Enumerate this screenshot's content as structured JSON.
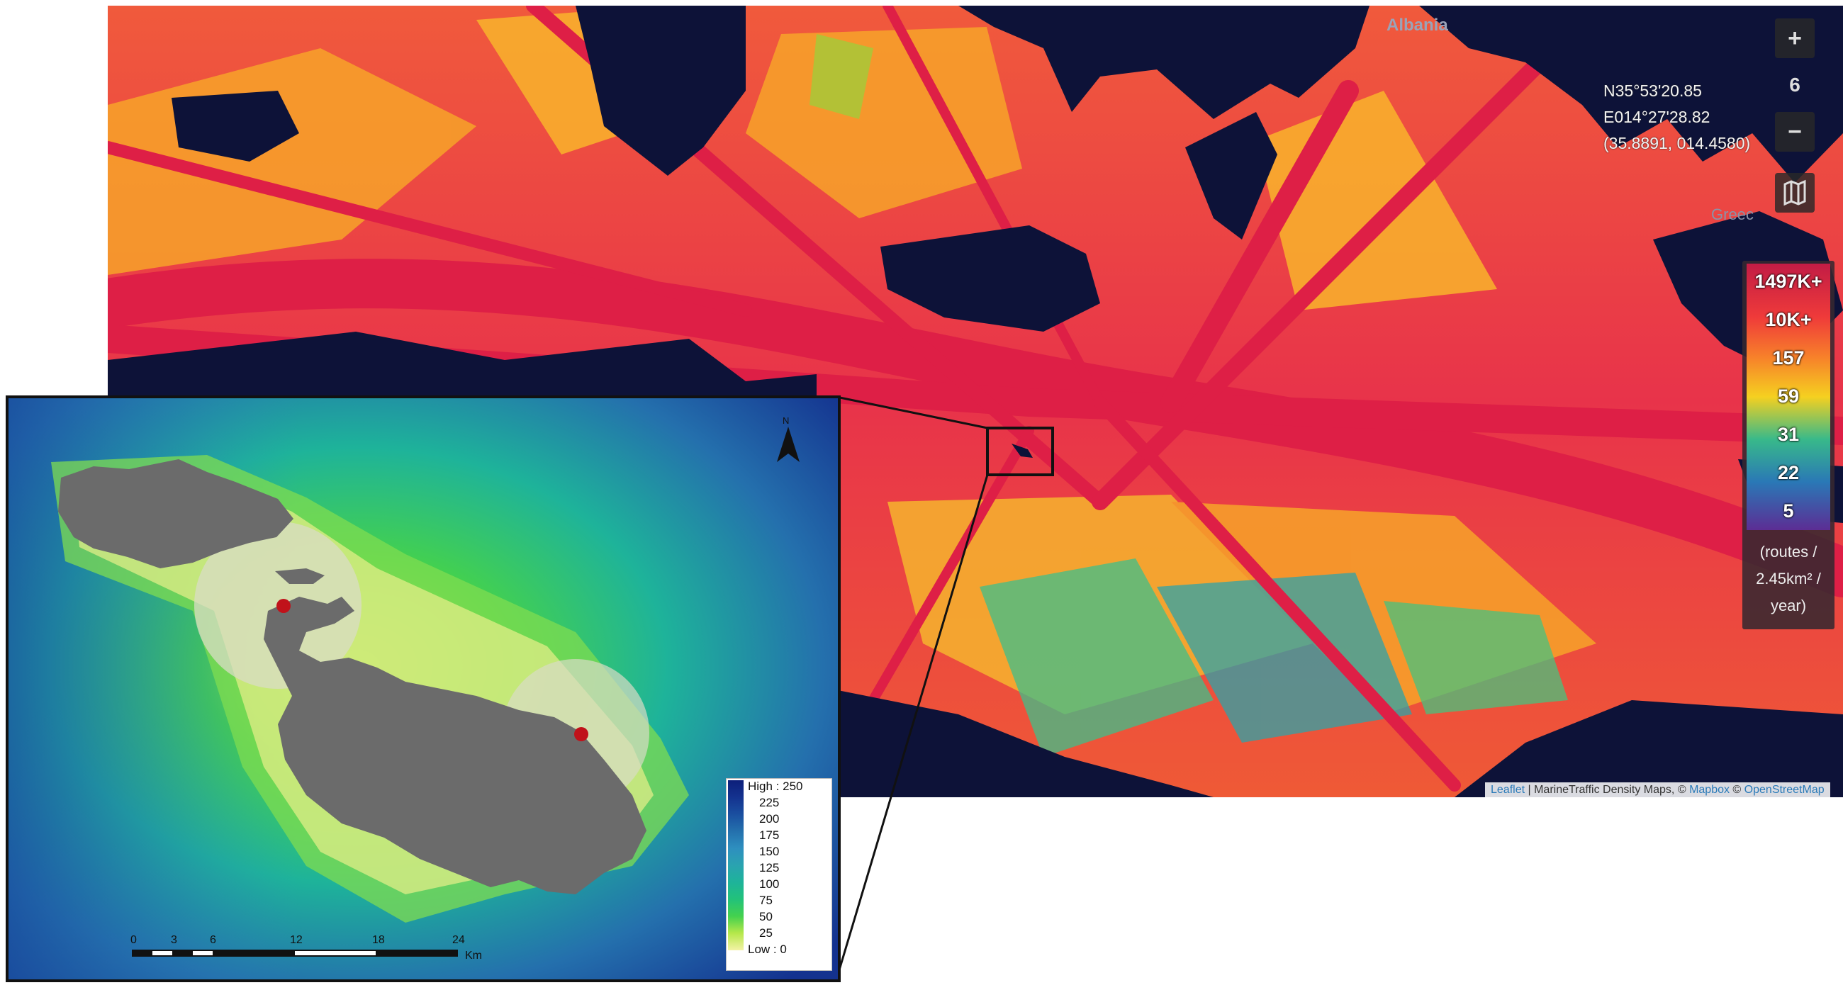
{
  "density_map": {
    "country_label": "Albania",
    "zoom_controls": {
      "zoom_in": "+",
      "zoom_level": "6",
      "zoom_out": "−",
      "layers_icon": "map-icon"
    },
    "coordinates": {
      "lat": "N35°53'20.85",
      "lon": "E014°27'28.82",
      "decimal": "(35.8891, 014.4580)"
    },
    "legend": {
      "labels": [
        "1497K+",
        "10K+",
        "157",
        "59",
        "31",
        "22",
        "5"
      ],
      "unit_lines": [
        "(routes /",
        "2.45km² /",
        "year)"
      ],
      "colors": [
        "#d8203f",
        "#f23d3d",
        "#f77a2a",
        "#f5c51f",
        "#39b98a",
        "#2a8fb0",
        "#6a3fa0"
      ]
    },
    "attribution": {
      "leaflet": "Leaflet",
      "middle": " | MarineTraffic Density Maps, © ",
      "mapbox": "Mapbox",
      "sep": " © ",
      "osm": "OpenStreetMap"
    },
    "partial_label": "Greec"
  },
  "inset": {
    "depth_legend": {
      "entries": [
        "High : 250",
        "225",
        "200",
        "175",
        "150",
        "125",
        "100",
        "75",
        "50",
        "25",
        "Low : 0"
      ],
      "colors": [
        "#0d1f7a",
        "#14328f",
        "#1a4fa0",
        "#2470ad",
        "#2e8fbf",
        "#2aa3b0",
        "#1eb39a",
        "#22c27a",
        "#44d14e",
        "#b6e84a",
        "#f3f2a6"
      ]
    },
    "scale_bar": {
      "ticks": [
        "0",
        "3",
        "6",
        "12",
        "18",
        "24"
      ],
      "unit": "Km"
    },
    "north_label": "N",
    "colors": {
      "land": "#6b6b6b",
      "marker": "#c0121a",
      "buffer": "#d9dcc6"
    }
  }
}
